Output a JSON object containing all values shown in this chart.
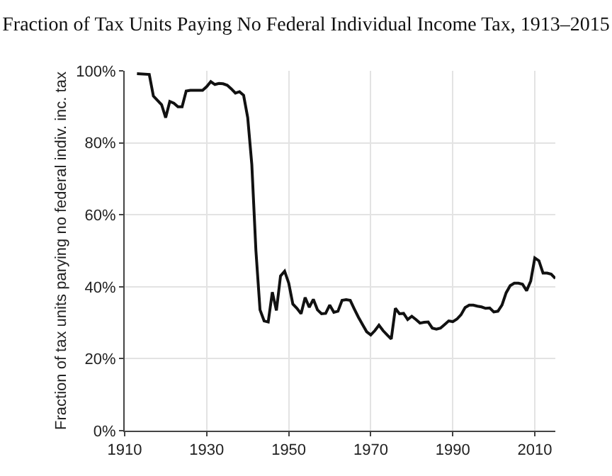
{
  "chart_data": {
    "type": "line",
    "title": "Fraction of Tax Units Paying No Federal Individual Income Tax, 1913–2015",
    "ylabel": "Fraction of tax units parying no federal indiv. inc. tax",
    "x": [
      1913,
      1916,
      1917,
      1919,
      1920,
      1921,
      1922,
      1923,
      1924,
      1925,
      1926,
      1929,
      1930,
      1931,
      1932,
      1933,
      1934,
      1935,
      1936,
      1937,
      1938,
      1939,
      1940,
      1941,
      1942,
      1943,
      1944,
      1945,
      1946,
      1947,
      1948,
      1949,
      1950,
      1951,
      1952,
      1953,
      1954,
      1955,
      1956,
      1957,
      1958,
      1959,
      1960,
      1961,
      1962,
      1963,
      1964,
      1965,
      1966,
      1967,
      1968,
      1969,
      1970,
      1971,
      1972,
      1973,
      1974,
      1975,
      1976,
      1977,
      1978,
      1979,
      1980,
      1981,
      1982,
      1983,
      1984,
      1985,
      1986,
      1987,
      1988,
      1989,
      1990,
      1991,
      1992,
      1993,
      1994,
      1995,
      1996,
      1997,
      1998,
      1999,
      2000,
      2001,
      2002,
      2003,
      2004,
      2005,
      2006,
      2007,
      2008,
      2009,
      2010,
      2011,
      2012,
      2013,
      2014,
      2015
    ],
    "series": [
      {
        "color": "#111111",
        "values": [
          99.2,
          99,
          93,
          90.6,
          87,
          91.5,
          91,
          90,
          90,
          94.4,
          94.6,
          94.6,
          95.6,
          97,
          96.2,
          96.5,
          96.4,
          96,
          95,
          93.8,
          94.2,
          93.2,
          87,
          74,
          50,
          33.6,
          30.5,
          30.2,
          38.5,
          33.4,
          43,
          44.3,
          41,
          35.2,
          34,
          32.5,
          37,
          34.3,
          36.5,
          33.6,
          32.5,
          32.6,
          34.9,
          32.9,
          33.2,
          36.2,
          36.4,
          36.2,
          33.8,
          31.5,
          29.5,
          27.5,
          26.6,
          27.8,
          29.3,
          27.8,
          26.6,
          25.5,
          34,
          32.5,
          32.6,
          30.9,
          31.8,
          30.9,
          29.9,
          30.1,
          30.2,
          28.5,
          28.2,
          28.5,
          29.5,
          30.5,
          30.3,
          31,
          32.2,
          34.2,
          34.9,
          34.9,
          34.6,
          34.4,
          34,
          34.1,
          33,
          33.2,
          34.9,
          38.3,
          40.3,
          41,
          41,
          40.7,
          38.9,
          41.6,
          48,
          47.2,
          43.8,
          43.8,
          43.5,
          42.3
        ]
      }
    ],
    "xlim": [
      1910,
      2015
    ],
    "xticks": [
      1910,
      1930,
      1950,
      1970,
      1990,
      2010
    ],
    "ylim": [
      0,
      100
    ],
    "yticks": [
      {
        "value": 0,
        "label": "0%"
      },
      {
        "value": 20,
        "label": "20%"
      },
      {
        "value": 40,
        "label": "40%"
      },
      {
        "value": 60,
        "label": "60%"
      },
      {
        "value": 80,
        "label": "80%"
      },
      {
        "value": 100,
        "label": "100%"
      }
    ],
    "grid": true,
    "marker": "none",
    "line_style": "solid"
  }
}
